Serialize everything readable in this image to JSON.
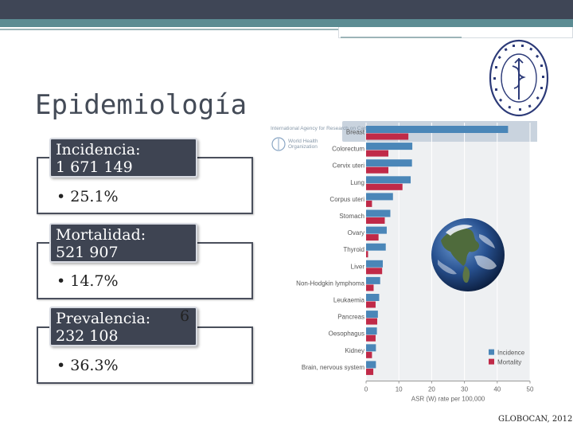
{
  "slide": {
    "title": "Epidemiología",
    "footer": "GLOBOCAN, 2012",
    "stray_char": "6"
  },
  "groups": [
    {
      "label_line1": "Incidencia:",
      "label_line2": "1 671 149",
      "bullet": "• 25.1%"
    },
    {
      "label_line1": "Mortalidad:",
      "label_line2": "521 907",
      "bullet": "• 14.7%"
    },
    {
      "label_line1": "Prevalencia:",
      "label_line2": "232 108",
      "bullet": "• 36.3%"
    }
  ],
  "chart_data": {
    "type": "bar",
    "orientation": "horizontal",
    "header_text": "International Agency for Research on Cancer",
    "org_text": [
      "World Health",
      "Organization"
    ],
    "categories": [
      "Breast",
      "Colorectum",
      "Cervix uteri",
      "Lung",
      "Corpus uteri",
      "Stomach",
      "Ovary",
      "Thyroid",
      "Liver",
      "Non-Hodgkin lymphoma",
      "Leukaemia",
      "Pancreas",
      "Oesophagus",
      "Kidney",
      "Brain, nervous system"
    ],
    "series": [
      {
        "name": "Incidence",
        "color": "#4a86b8",
        "values": [
          43.3,
          14.1,
          14.0,
          13.6,
          8.2,
          7.4,
          6.3,
          6.0,
          5.1,
          4.3,
          4.0,
          3.6,
          3.3,
          3.0,
          3.0
        ]
      },
      {
        "name": "Mortality",
        "color": "#c02a48",
        "values": [
          12.9,
          6.8,
          6.8,
          11.1,
          1.8,
          5.7,
          3.8,
          0.6,
          4.9,
          2.3,
          2.9,
          3.4,
          2.9,
          1.8,
          2.2
        ]
      }
    ],
    "xlabel": "ASR (W) rate per 100,000",
    "xlim": [
      0,
      50
    ],
    "xticks": [
      "0",
      "10",
      "20",
      "30",
      "40",
      "50"
    ],
    "legend_position": "bottom-right",
    "grid": true
  }
}
